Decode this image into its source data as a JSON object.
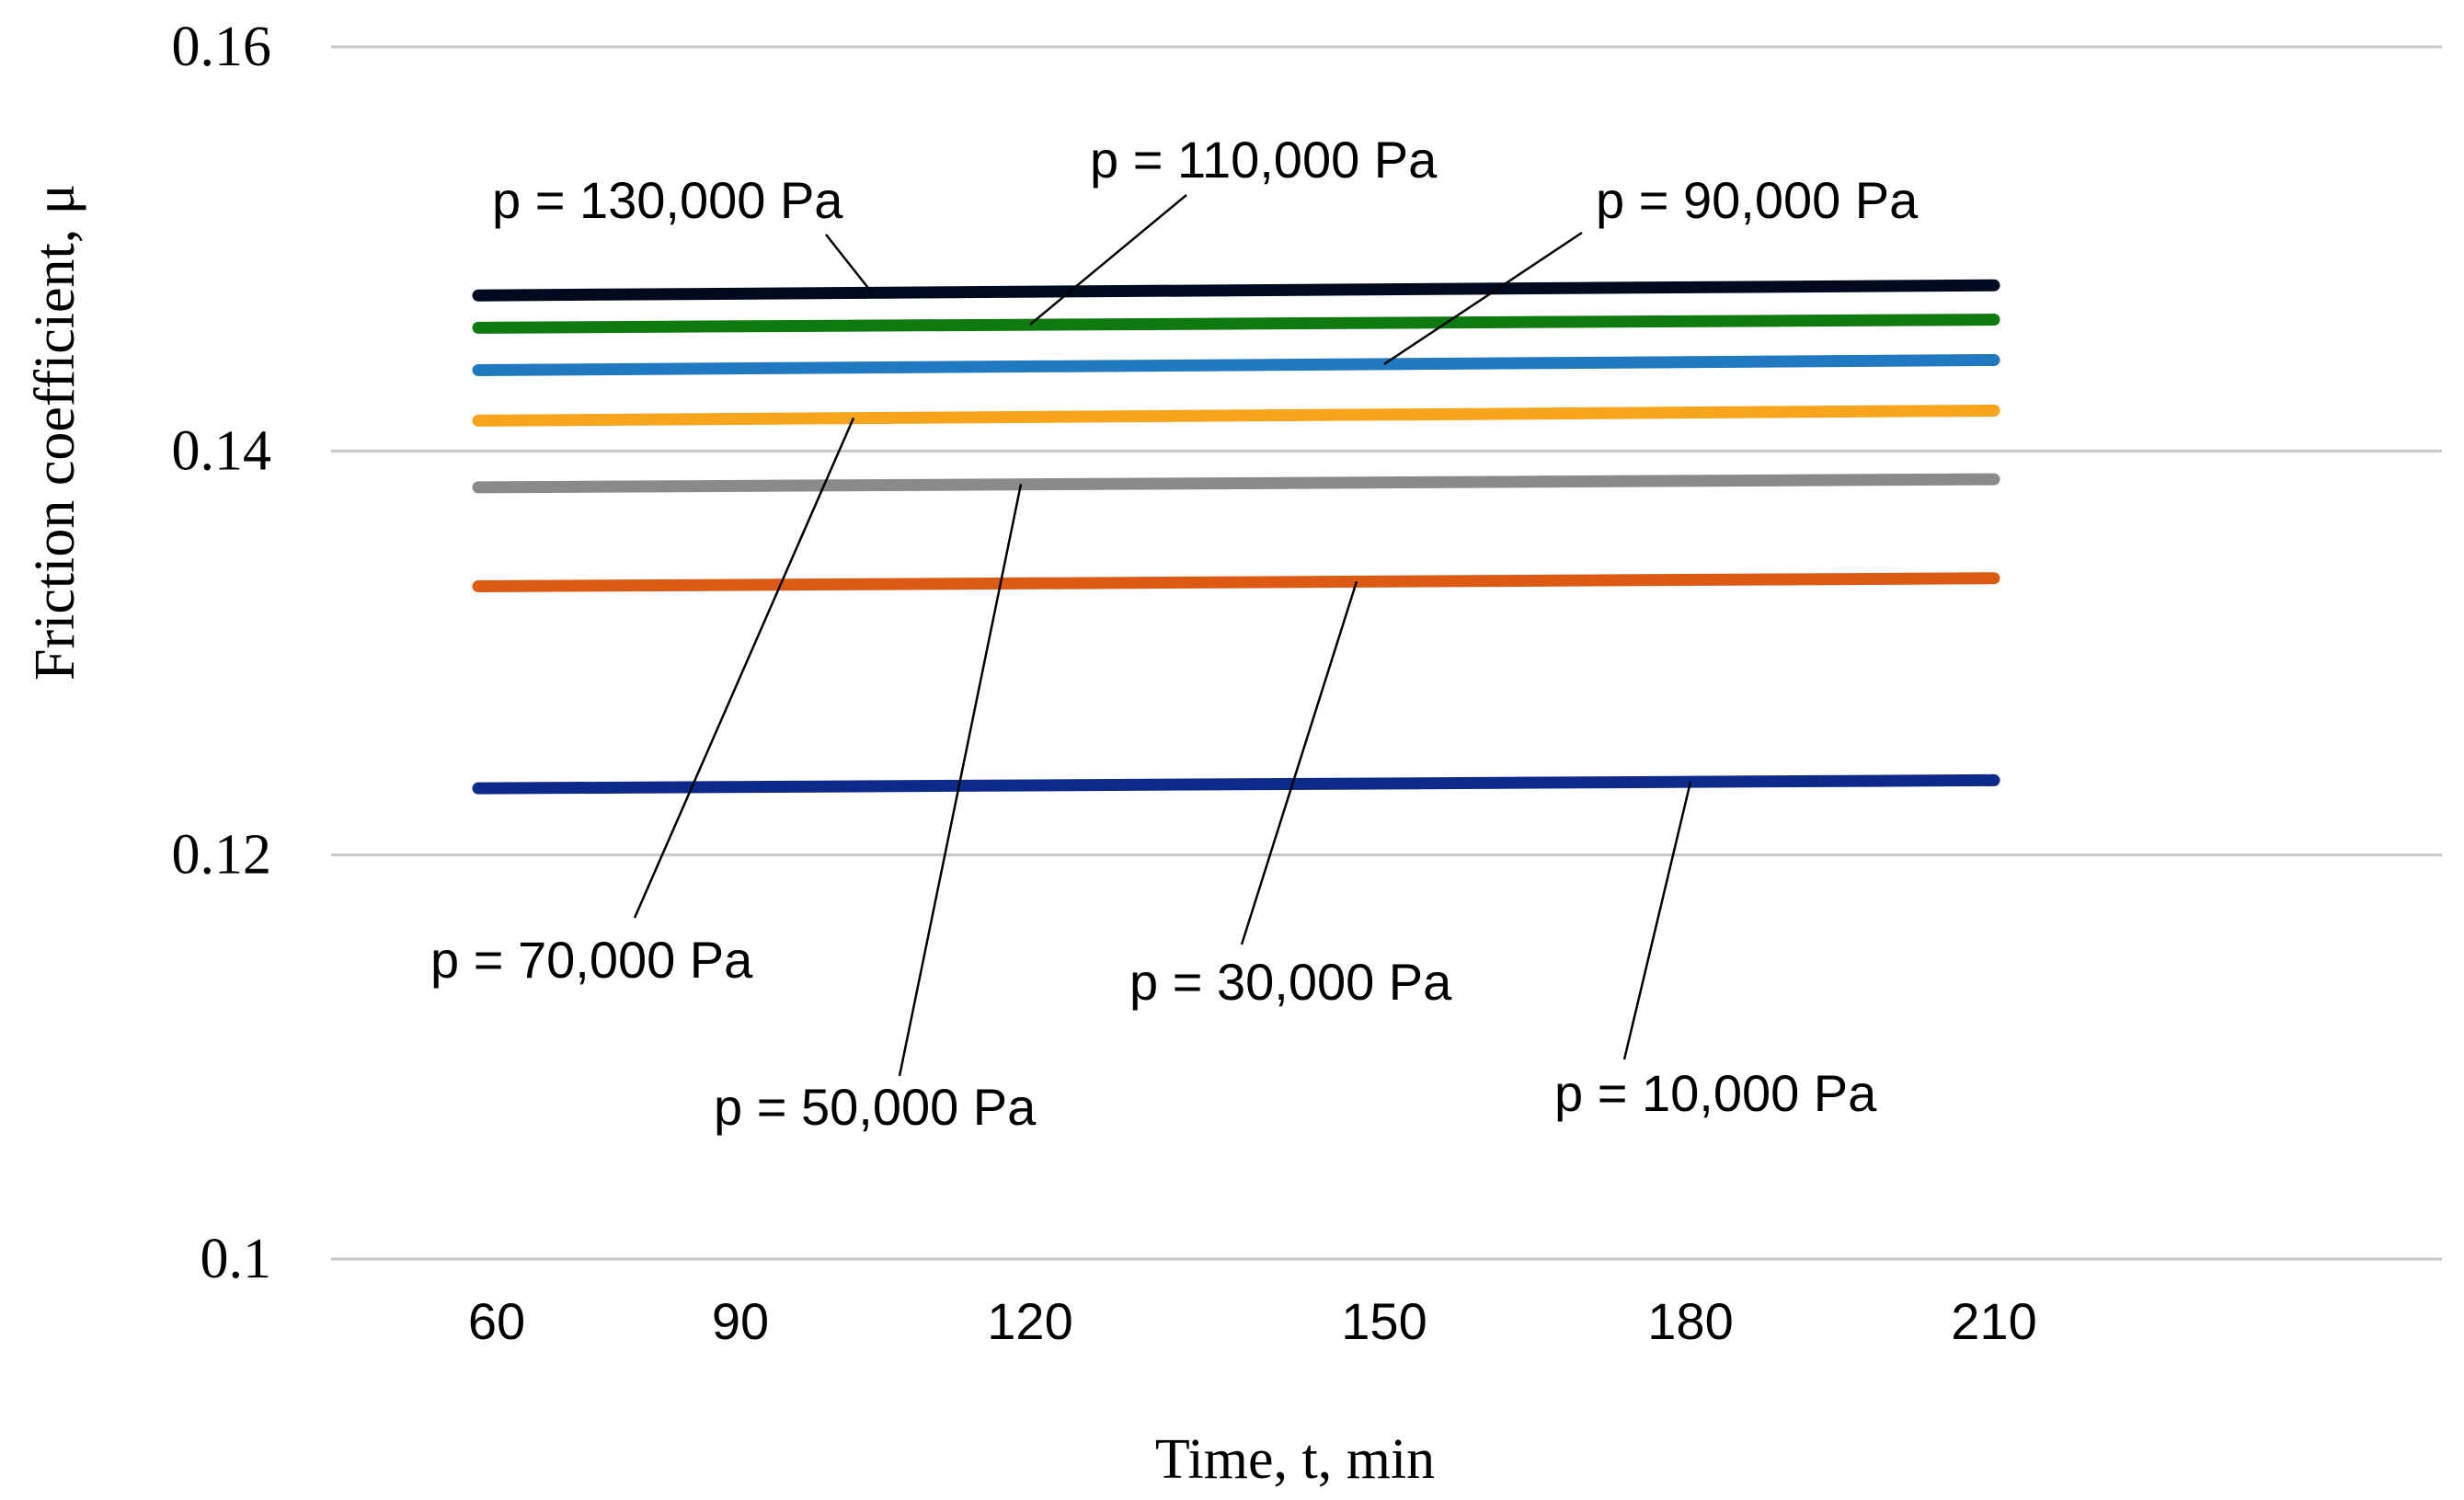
{
  "chart_data": {
    "type": "line",
    "title": "",
    "xlabel": "Time, t, min",
    "ylabel": "Friction coefficient, μ",
    "x": [
      60,
      210
    ],
    "xticks": [
      "60",
      "90",
      "120",
      "150",
      "180",
      "210"
    ],
    "xtick_values": [
      60,
      90,
      120,
      150,
      180,
      210
    ],
    "yticks": [
      "0.1",
      "0.12",
      "0.14",
      "0.16"
    ],
    "ytick_values": [
      0.1,
      0.12,
      0.14,
      0.16
    ],
    "ylim": [
      0.1,
      0.16
    ],
    "grid": true,
    "legend": "none",
    "series": [
      {
        "name": "p = 130,000 Pa",
        "values": [
          0.1477,
          0.1482
        ],
        "color": "#000a1f",
        "label_anchor_x": 100
      },
      {
        "name": "p = 110,000 Pa",
        "values": [
          0.1461,
          0.1465
        ],
        "color": "#0f7a10",
        "label_anchor_x": 120
      },
      {
        "name": "p = 90,000 Pa",
        "values": [
          0.144,
          0.1445
        ],
        "color": "#2079c1",
        "label_anchor_x": 150
      },
      {
        "name": "p = 70,000 Pa",
        "values": [
          0.1415,
          0.142
        ],
        "color": "#f7a51c",
        "label_anchor_x": 100
      },
      {
        "name": "p = 50,000 Pa",
        "values": [
          0.1382,
          0.1386
        ],
        "color": "#8a8a8a",
        "label_anchor_x": 120
      },
      {
        "name": "p = 30,000 Pa",
        "values": [
          0.1333,
          0.1337
        ],
        "color": "#dd5a14",
        "label_anchor_x": 150
      },
      {
        "name": "p = 10,000 Pa",
        "values": [
          0.1233,
          0.1237
        ],
        "color": "#0d2a8a",
        "label_anchor_x": 180
      }
    ]
  }
}
